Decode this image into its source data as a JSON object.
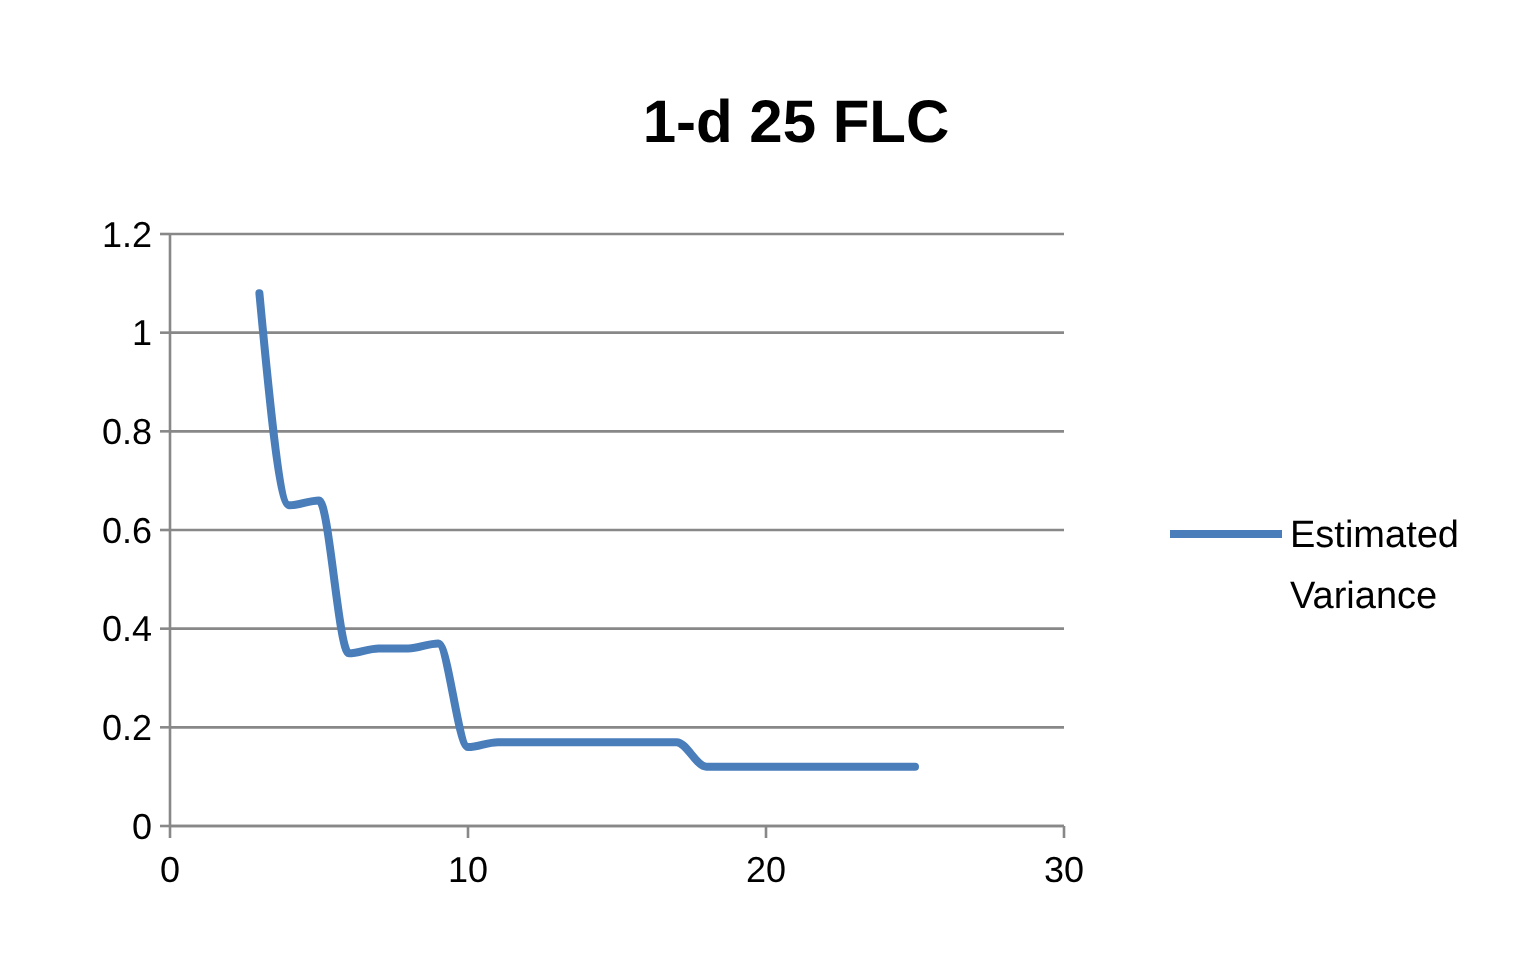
{
  "chart_data": {
    "type": "line",
    "title": "1-d 25 FLC",
    "x": [
      3,
      4,
      5,
      6,
      7,
      8,
      9,
      10,
      11,
      12,
      13,
      14,
      15,
      16,
      17,
      18,
      19,
      20,
      21,
      22,
      23,
      24,
      25
    ],
    "series": [
      {
        "name": "Estimated Variance",
        "color": "#4a7ebb",
        "values": [
          1.08,
          0.65,
          0.66,
          0.35,
          0.36,
          0.36,
          0.37,
          0.16,
          0.17,
          0.17,
          0.17,
          0.17,
          0.17,
          0.17,
          0.17,
          0.12,
          0.12,
          0.12,
          0.12,
          0.12,
          0.12,
          0.12,
          0.12
        ]
      }
    ],
    "xlim": [
      0,
      30
    ],
    "xticks": [
      0,
      10,
      20,
      30
    ],
    "ylim": [
      0,
      1.2
    ],
    "yticks": [
      0,
      0.2,
      0.4,
      0.6,
      0.8,
      1,
      1.2
    ],
    "grid": "y",
    "legend": "right",
    "marker": "none",
    "line_style": "solid"
  }
}
